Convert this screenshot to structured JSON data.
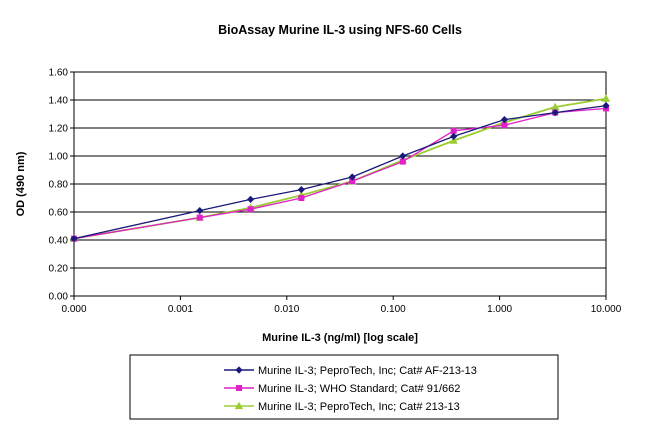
{
  "chart_data": {
    "type": "line",
    "title": "BioAssay  Murine IL-3 using NFS-60 Cells",
    "xlabel": "Murine IL-3 (ng/ml) [log scale]",
    "ylabel": "OD (490 nm)",
    "x_scale": "log",
    "x_ticks": [
      0.0001,
      0.001,
      0.01,
      0.1,
      1,
      10
    ],
    "x_tick_labels": [
      "0.000",
      "0.001",
      "0.010",
      "0.100",
      "1.000",
      "10.000"
    ],
    "y_ticks": [
      0,
      0.2,
      0.4,
      0.6,
      0.8,
      1.0,
      1.2,
      1.4,
      1.6
    ],
    "y_tick_labels": [
      "0.00",
      "0.20",
      "0.40",
      "0.60",
      "0.80",
      "1.00",
      "1.20",
      "1.40",
      "1.60"
    ],
    "ylim": [
      0,
      1.6
    ],
    "xlim": [
      0.0001,
      10
    ],
    "grid": "horizontal",
    "legend_position": "bottom",
    "series": [
      {
        "name": "Murine IL-3; PeproTech, Inc; Cat# AF-213-13",
        "color": "#1a1a7a",
        "marker": "diamond",
        "x": [
          0.0001,
          0.00152,
          0.00457,
          0.0137,
          0.0412,
          0.123,
          0.37,
          1.11,
          3.33,
          10
        ],
        "y": [
          0.41,
          0.61,
          0.69,
          0.76,
          0.85,
          1.0,
          1.14,
          1.26,
          1.31,
          1.36
        ]
      },
      {
        "name": "Murine IL-3; WHO Standard; Cat# 91/662",
        "color": "#e020c8",
        "marker": "square",
        "x": [
          0.0001,
          0.00152,
          0.00457,
          0.0137,
          0.0412,
          0.123,
          0.37,
          1.11,
          3.33,
          10
        ],
        "y": [
          0.41,
          0.56,
          0.62,
          0.7,
          0.82,
          0.96,
          1.18,
          1.22,
          1.31,
          1.34
        ]
      },
      {
        "name": "Murine IL-3; PeproTech, Inc; Cat# 213-13",
        "color": "#9acd32",
        "marker": "triangle",
        "x": [
          0.0001,
          0.00152,
          0.00457,
          0.0137,
          0.0412,
          0.123,
          0.37,
          1.11,
          3.33,
          10
        ],
        "y": [
          0.41,
          0.56,
          0.63,
          0.72,
          0.82,
          0.97,
          1.11,
          1.24,
          1.35,
          1.41
        ]
      }
    ]
  }
}
